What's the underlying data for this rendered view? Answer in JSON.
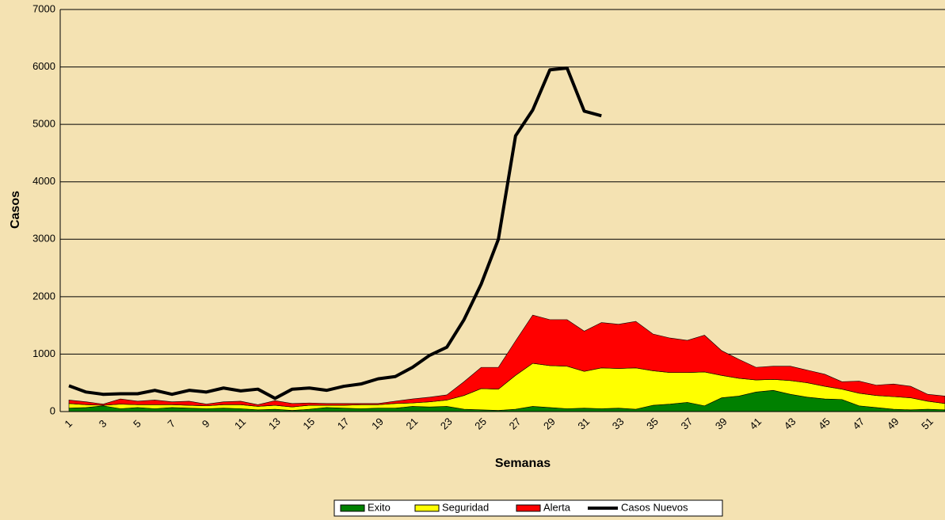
{
  "chart_data": {
    "type": "stacked-area-line",
    "y_label": "Casos",
    "x_label": "Semanas",
    "categories": [
      1,
      null,
      3,
      null,
      5,
      null,
      7,
      null,
      9,
      null,
      11,
      null,
      13,
      null,
      15,
      null,
      17,
      null,
      19,
      null,
      21,
      null,
      23,
      null,
      25,
      null,
      27,
      null,
      29,
      null,
      31,
      null,
      33,
      null,
      35,
      null,
      37,
      null,
      39,
      null,
      41,
      null,
      43,
      null,
      45,
      null,
      47,
      null,
      49,
      null,
      51,
      null
    ],
    "ylim": [
      0,
      7000
    ],
    "yticks": [
      0,
      1000,
      2000,
      3000,
      4000,
      5000,
      6000,
      7000
    ],
    "grid": true,
    "series": [
      {
        "name": "Exito",
        "color": "#008000",
        "kind": "area",
        "values": [
          60,
          70,
          100,
          50,
          70,
          50,
          70,
          60,
          50,
          60,
          50,
          30,
          40,
          20,
          40,
          70,
          60,
          50,
          60,
          60,
          90,
          80,
          90,
          40,
          30,
          20,
          40,
          90,
          70,
          50,
          60,
          50,
          60,
          40,
          110,
          130,
          160,
          100,
          240,
          270,
          340,
          370,
          300,
          250,
          220,
          210,
          100,
          70,
          40,
          30,
          40,
          30
        ]
      },
      {
        "name": "Seguridad",
        "color": "#ffff00",
        "kind": "area",
        "values": [
          80,
          50,
          10,
          80,
          50,
          70,
          50,
          50,
          50,
          60,
          70,
          60,
          70,
          60,
          70,
          40,
          50,
          70,
          60,
          80,
          60,
          90,
          110,
          240,
          370,
          370,
          590,
          750,
          730,
          740,
          640,
          710,
          690,
          720,
          600,
          550,
          520,
          590,
          390,
          310,
          210,
          190,
          240,
          250,
          220,
          180,
          220,
          210,
          220,
          210,
          140,
          110
        ]
      },
      {
        "name": "Alerta",
        "color": "#ff0000",
        "kind": "area",
        "values": [
          60,
          50,
          20,
          90,
          60,
          80,
          50,
          70,
          30,
          50,
          60,
          30,
          80,
          60,
          40,
          30,
          30,
          20,
          20,
          40,
          70,
          80,
          90,
          240,
          370,
          380,
          600,
          840,
          800,
          810,
          700,
          790,
          770,
          810,
          640,
          600,
          560,
          640,
          430,
          330,
          220,
          230,
          250,
          220,
          210,
          130,
          210,
          180,
          220,
          200,
          120,
          130
        ]
      },
      {
        "name": "Casos Nuevos",
        "color": "#000000",
        "kind": "line",
        "values": [
          450,
          340,
          300,
          310,
          310,
          370,
          300,
          370,
          340,
          410,
          360,
          390,
          230,
          390,
          410,
          370,
          440,
          480,
          570,
          610,
          770,
          980,
          1120,
          1600,
          2220,
          3000,
          4800,
          5250,
          5950,
          5980,
          5230,
          5150,
          null,
          null,
          null,
          null,
          null,
          null,
          null,
          null,
          null,
          null,
          null,
          null,
          null,
          null,
          null,
          null,
          null,
          null,
          null,
          null
        ]
      }
    ]
  }
}
